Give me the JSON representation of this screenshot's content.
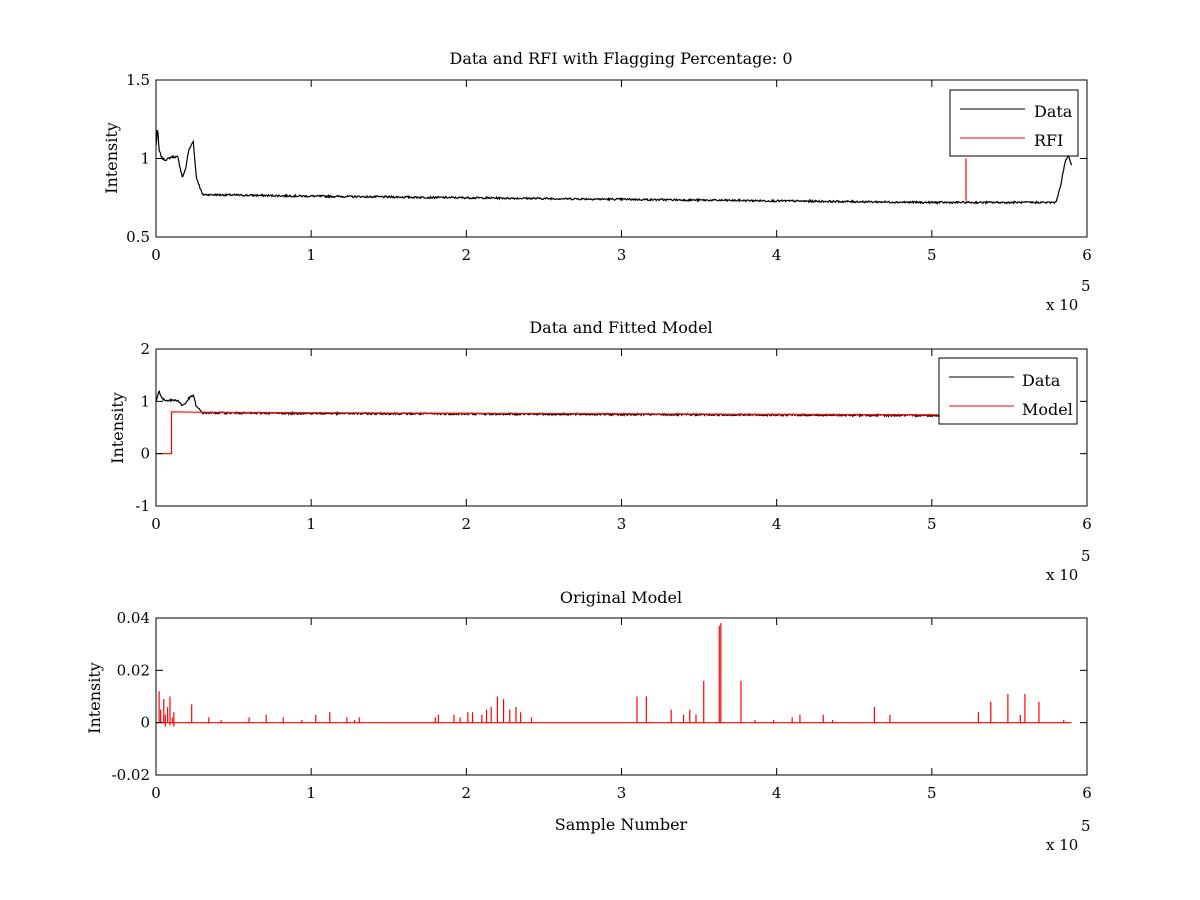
{
  "chart_data": [
    {
      "type": "line",
      "title": "Data and RFI with Flagging Percentage: 0",
      "xlabel": "",
      "ylabel": "Intensity",
      "xlim": [
        0,
        600000
      ],
      "ylim": [
        0.5,
        1.5
      ],
      "xticks": [
        "0",
        "1",
        "2",
        "3",
        "4",
        "5",
        "6"
      ],
      "yticks": [
        "0.5",
        "1",
        "1.5"
      ],
      "x_multiplier": "x 10",
      "x_exponent": "5",
      "legend_position": "top-right",
      "series": [
        {
          "name": "Data",
          "color": "#000000",
          "x": [
            0,
            1000,
            2000,
            4000,
            6000,
            10000,
            14000,
            17000,
            19000,
            21000,
            24000,
            26000,
            30000,
            100000,
            200000,
            300000,
            400000,
            500000,
            580000,
            583000,
            586000,
            588000,
            590000
          ],
          "y": [
            1.08,
            1.2,
            1.05,
            1.0,
            0.99,
            1.01,
            1.01,
            0.88,
            0.93,
            1.05,
            1.11,
            0.88,
            0.77,
            0.76,
            0.75,
            0.74,
            0.73,
            0.72,
            0.72,
            0.83,
            0.98,
            1.02,
            0.96
          ]
        },
        {
          "name": "RFI",
          "color": "#ff0000",
          "x": [
            522000,
            522000
          ],
          "y": [
            0.73,
            1.0
          ]
        }
      ]
    },
    {
      "type": "line",
      "title": "Data and Fitted Model",
      "xlabel": "",
      "ylabel": "Intensity",
      "xlim": [
        0,
        600000
      ],
      "ylim": [
        -1,
        2
      ],
      "xticks": [
        "0",
        "1",
        "2",
        "3",
        "4",
        "5",
        "6"
      ],
      "yticks": [
        "-1",
        "0",
        "1",
        "2"
      ],
      "x_multiplier": "x 10",
      "x_exponent": "5",
      "legend_position": "top-right",
      "series": [
        {
          "name": "Data",
          "color": "#000000",
          "x": [
            0,
            2000,
            4000,
            6000,
            10000,
            14000,
            17000,
            19000,
            21000,
            24000,
            26000,
            30000,
            100000,
            200000,
            300000,
            400000,
            500000,
            580000,
            590000
          ],
          "y": [
            1.0,
            1.2,
            1.05,
            1.02,
            1.02,
            1.02,
            0.92,
            0.96,
            1.05,
            1.12,
            0.9,
            0.78,
            0.77,
            0.76,
            0.75,
            0.74,
            0.73,
            0.72,
            0.72
          ]
        },
        {
          "name": "Model",
          "color": "#ff0000",
          "x": [
            0,
            10000,
            10000,
            30000,
            100000,
            200000,
            300000,
            400000,
            500000,
            590000
          ],
          "y": [
            0.0,
            0.0,
            0.8,
            0.79,
            0.78,
            0.77,
            0.76,
            0.75,
            0.74,
            0.73
          ]
        }
      ]
    },
    {
      "type": "line",
      "title": "Original Model",
      "xlabel": "Sample Number",
      "ylabel": "Intensity",
      "xlim": [
        0,
        600000
      ],
      "ylim": [
        -0.02,
        0.04
      ],
      "xticks": [
        "0",
        "1",
        "2",
        "3",
        "4",
        "5",
        "6"
      ],
      "yticks": [
        "-0.02",
        "0",
        "0.02",
        "0.04"
      ],
      "x_multiplier": "x 10",
      "x_exponent": "5",
      "series": [
        {
          "color": "#ff0000",
          "spike_x": [
            2000,
            3000,
            5000,
            6000,
            7500,
            9000,
            10500,
            11500,
            23000,
            34000,
            42000,
            60000,
            71000,
            82000,
            94000,
            103000,
            112000,
            123000,
            128000,
            131000,
            180000,
            182000,
            192000,
            196000,
            201000,
            204000,
            210000,
            213000,
            216000,
            220000,
            224000,
            228000,
            232000,
            235000,
            242000,
            310000,
            316000,
            332000,
            340000,
            344000,
            348000,
            353000,
            363000,
            364000,
            377000,
            386000,
            398000,
            410000,
            415000,
            430000,
            436000,
            463000,
            473000,
            530000,
            538000,
            549000,
            557000,
            560000,
            569000,
            585000
          ],
          "spike_y": [
            0.012,
            0.005,
            0.009,
            0.003,
            0.006,
            0.01,
            0.002,
            0.004,
            0.007,
            0.002,
            0.001,
            0.002,
            0.003,
            0.002,
            0.001,
            0.003,
            0.004,
            0.002,
            0.001,
            0.002,
            0.002,
            0.003,
            0.003,
            0.002,
            0.004,
            0.004,
            0.003,
            0.005,
            0.006,
            0.01,
            0.009,
            0.005,
            0.006,
            0.004,
            0.002,
            0.01,
            0.01,
            0.005,
            0.003,
            0.005,
            0.003,
            0.016,
            0.037,
            0.038,
            0.016,
            0.001,
            0.001,
            0.002,
            0.003,
            0.003,
            0.001,
            0.006,
            0.003,
            0.004,
            0.008,
            0.011,
            0.003,
            0.011,
            0.008,
            0.001
          ],
          "negative_x": [
            6000,
            9000,
            11500
          ],
          "negative_y": [
            -0.0015,
            -0.001,
            -0.0015
          ]
        }
      ]
    }
  ]
}
